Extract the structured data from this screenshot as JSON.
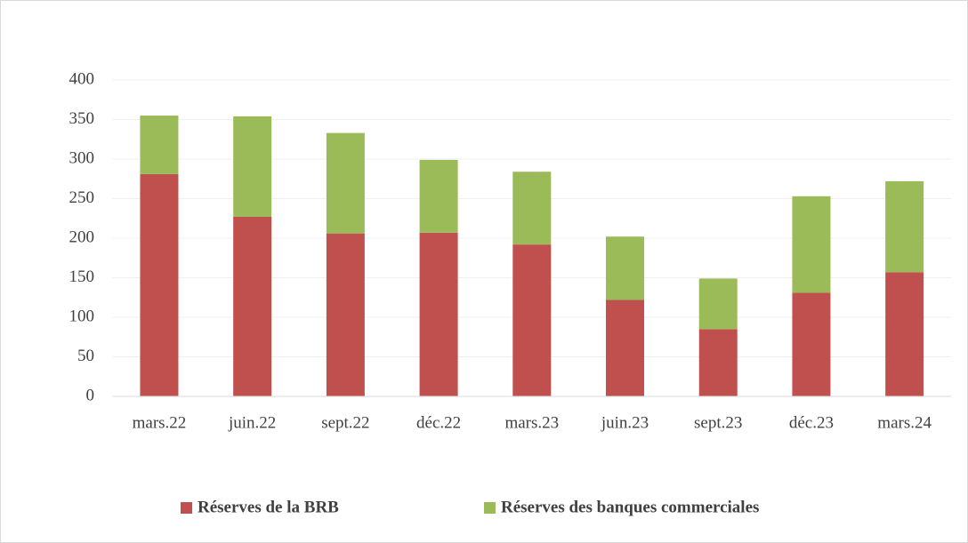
{
  "chart_data": {
    "type": "stacked_bar",
    "categories": [
      "mars.22",
      "juin.22",
      "sept.22",
      "déc.22",
      "mars.23",
      "juin.23",
      "sept.23",
      "déc.23",
      "mars.24"
    ],
    "series": [
      {
        "name": "Réserves de la BRB",
        "color": "#c0504d",
        "values": [
          281,
          227,
          206,
          207,
          192,
          122,
          85,
          131,
          157
        ]
      },
      {
        "name": "Réserves des banques commerciales",
        "color": "#9bbb59",
        "values": [
          74,
          127,
          127,
          92,
          92,
          80,
          64,
          122,
          115
        ]
      }
    ],
    "ylim": [
      0,
      400
    ],
    "yticks": [
      0,
      50,
      100,
      150,
      200,
      250,
      300,
      350,
      400
    ],
    "grid": true,
    "legend": "bottom"
  }
}
